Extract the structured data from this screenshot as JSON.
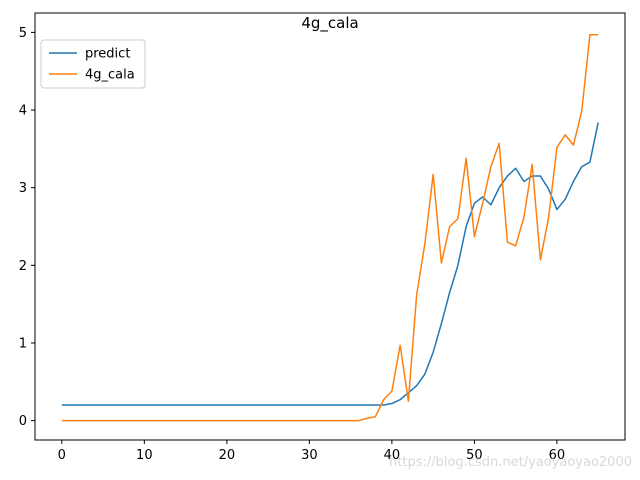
{
  "chart_data": {
    "type": "line",
    "title": "4g_cala",
    "xlabel": "",
    "ylabel": "",
    "xlim": [
      -3.25,
      68.25
    ],
    "ylim": [
      -0.25,
      5.25
    ],
    "xticks": [
      0,
      10,
      20,
      30,
      40,
      50,
      60
    ],
    "yticks": [
      0,
      1,
      2,
      3,
      4,
      5
    ],
    "grid": false,
    "legend_position": "upper-left",
    "series": [
      {
        "name": "predict",
        "color": "#1f77b4",
        "x": [
          0,
          1,
          2,
          3,
          4,
          5,
          6,
          7,
          8,
          9,
          10,
          11,
          12,
          13,
          14,
          15,
          16,
          17,
          18,
          19,
          20,
          21,
          22,
          23,
          24,
          25,
          26,
          27,
          28,
          29,
          30,
          31,
          32,
          33,
          34,
          35,
          36,
          37,
          38,
          39,
          40,
          41,
          42,
          43,
          44,
          45,
          46,
          47,
          48,
          49,
          50,
          51,
          52,
          53,
          54,
          55,
          56,
          57,
          58,
          59,
          60,
          61,
          62,
          63,
          64,
          65
        ],
        "values": [
          0.2,
          0.2,
          0.2,
          0.2,
          0.2,
          0.2,
          0.2,
          0.2,
          0.2,
          0.2,
          0.2,
          0.2,
          0.2,
          0.2,
          0.2,
          0.2,
          0.2,
          0.2,
          0.2,
          0.2,
          0.2,
          0.2,
          0.2,
          0.2,
          0.2,
          0.2,
          0.2,
          0.2,
          0.2,
          0.2,
          0.2,
          0.2,
          0.2,
          0.2,
          0.2,
          0.2,
          0.2,
          0.2,
          0.2,
          0.2,
          0.22,
          0.27,
          0.36,
          0.45,
          0.6,
          0.88,
          1.25,
          1.65,
          2.0,
          2.5,
          2.8,
          2.88,
          2.78,
          3.0,
          3.15,
          3.25,
          3.08,
          3.15,
          3.15,
          2.98,
          2.72,
          2.85,
          3.08,
          3.27,
          3.33,
          3.84
        ]
      },
      {
        "name": "4g_cala",
        "color": "#ff7f0e",
        "x": [
          0,
          1,
          2,
          3,
          4,
          5,
          6,
          7,
          8,
          9,
          10,
          11,
          12,
          13,
          14,
          15,
          16,
          17,
          18,
          19,
          20,
          21,
          22,
          23,
          24,
          25,
          26,
          27,
          28,
          29,
          30,
          31,
          32,
          33,
          34,
          35,
          36,
          37,
          38,
          39,
          40,
          41,
          42,
          43,
          44,
          45,
          46,
          47,
          48,
          49,
          50,
          51,
          52,
          53,
          54,
          55,
          56,
          57,
          58,
          59,
          60,
          61,
          62,
          63,
          64,
          65
        ],
        "values": [
          0,
          0,
          0,
          0,
          0,
          0,
          0,
          0,
          0,
          0,
          0,
          0,
          0,
          0,
          0,
          0,
          0,
          0,
          0,
          0,
          0,
          0,
          0,
          0,
          0,
          0,
          0,
          0,
          0,
          0,
          0,
          0,
          0,
          0,
          0,
          0,
          0,
          0.03,
          0.05,
          0.27,
          0.38,
          0.97,
          0.25,
          1.62,
          2.28,
          3.17,
          2.03,
          2.5,
          2.6,
          3.38,
          2.37,
          2.8,
          3.27,
          3.57,
          2.3,
          2.25,
          2.62,
          3.3,
          2.07,
          2.62,
          3.52,
          3.68,
          3.55,
          3.98,
          4.97,
          4.97
        ]
      }
    ]
  },
  "watermark": "https://blog.csdn.net/yaoyaoyao2000"
}
